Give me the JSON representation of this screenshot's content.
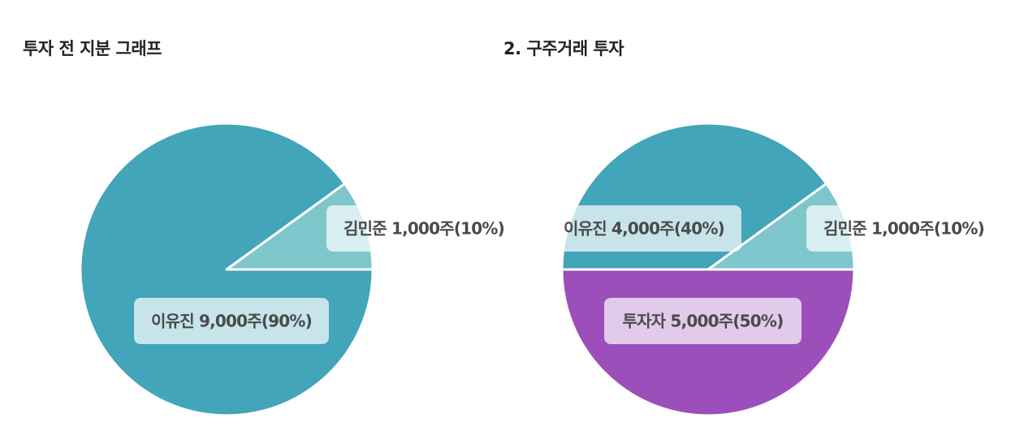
{
  "chart_data": [
    {
      "type": "pie",
      "title": "투자 전 지분 그래프",
      "slices": [
        {
          "name": "김민준",
          "shares": 1000,
          "percent": 10,
          "label": "김민준 1,000주(10%)",
          "color": "#7EC6CC"
        },
        {
          "name": "이유진",
          "shares": 9000,
          "percent": 90,
          "label": "이유진 9,000주(90%)",
          "color": "#42A5B9"
        }
      ]
    },
    {
      "type": "pie",
      "title": "2. 구주거래 투자",
      "slices": [
        {
          "name": "김민준",
          "shares": 1000,
          "percent": 10,
          "label": "김민준 1,000주(10%)",
          "color": "#7EC6CC"
        },
        {
          "name": "이유진",
          "shares": 4000,
          "percent": 40,
          "label": "이유진 4,000주(40%)",
          "color": "#42A5B9"
        },
        {
          "name": "투자자",
          "shares": 5000,
          "percent": 50,
          "label": "투자자 5,000주(50%)",
          "color": "#9C4FBA"
        }
      ]
    }
  ]
}
